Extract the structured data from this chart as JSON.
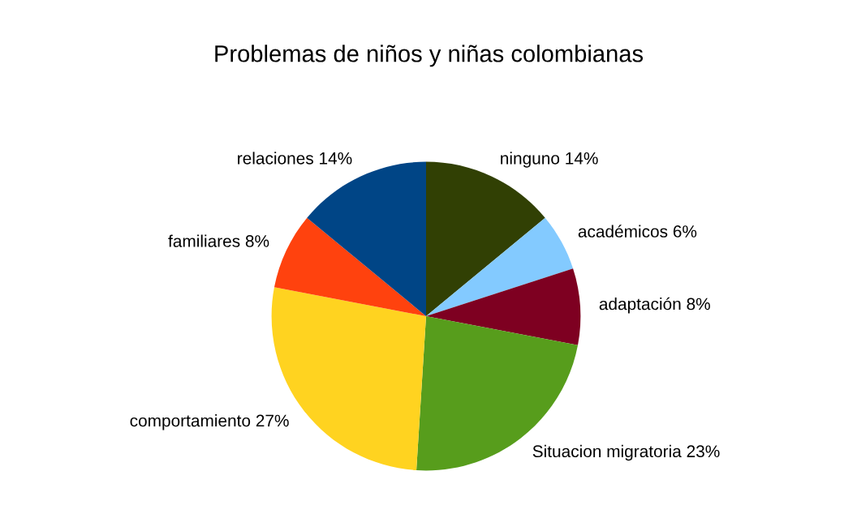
{
  "chart_data": {
    "type": "pie",
    "title": "Problemas de niños y niñas colombianas",
    "categories": [
      "ninguno",
      "académicos",
      "adaptación",
      "Situacion migratoria",
      "comportamiento",
      "familiares",
      "relaciones"
    ],
    "values": [
      14,
      6,
      8,
      23,
      27,
      8,
      14
    ],
    "value_labels": [
      "14%",
      "6%",
      "8%",
      "23%",
      "27%",
      "8%",
      "14%"
    ],
    "colors": [
      "#314004",
      "#83caff",
      "#7e0021",
      "#579d1c",
      "#ffd320",
      "#ff420e",
      "#004586"
    ],
    "legend": false
  }
}
